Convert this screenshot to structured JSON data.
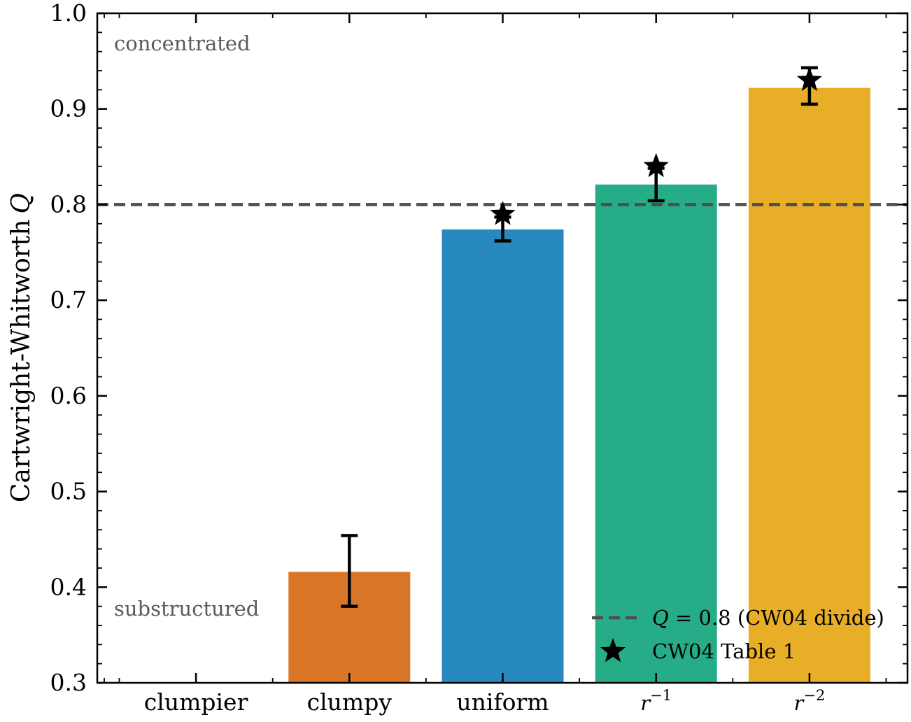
{
  "chart_data": {
    "type": "bar",
    "ylabel": "Cartwright-Whitworth",
    "ylabel_symbol": "Q",
    "ylim": [
      0.3,
      1.0
    ],
    "yticks": [
      0.3,
      0.4,
      0.5,
      0.6,
      0.7,
      0.8,
      0.9,
      1.0
    ],
    "ytick_labels": [
      "0.3",
      "0.4",
      "0.5",
      "0.6",
      "0.7",
      "0.8",
      "0.9",
      "1.0"
    ],
    "categories": [
      {
        "label": "clumpier",
        "value": null,
        "err_low": null,
        "err_high": null,
        "color": "#000000"
      },
      {
        "label": "clumpy",
        "value": 0.416,
        "err_low": 0.38,
        "err_high": 0.454,
        "color": "#d97627"
      },
      {
        "label": "uniform",
        "value": 0.774,
        "err_low": 0.762,
        "err_high": 0.787,
        "color": "#2789bd"
      },
      {
        "label": "r",
        "label_sup": "−1",
        "value": 0.821,
        "err_low": 0.804,
        "err_high": 0.838,
        "color": "#26ad88"
      },
      {
        "label": "r",
        "label_sup": "−2",
        "value": 0.922,
        "err_low": 0.905,
        "err_high": 0.943,
        "color": "#e8ae27"
      }
    ],
    "reference_points": {
      "name": "CW04 Table 1",
      "marker": "star",
      "points": [
        {
          "category": "uniform",
          "value": 0.79
        },
        {
          "category": "r^-1",
          "value": 0.84
        },
        {
          "category": "r^-2",
          "value": 0.93
        }
      ]
    },
    "reference_line": {
      "value": 0.8,
      "label_symbol": "Q",
      "label_eq": " = 0.8",
      "label_text": " (CW04 divide)",
      "color": "#4d4d4d",
      "style": "dashed"
    },
    "annotations": {
      "top": "concentrated",
      "bottom": "substructured"
    },
    "legend_position": "lower-right",
    "grid": false
  }
}
